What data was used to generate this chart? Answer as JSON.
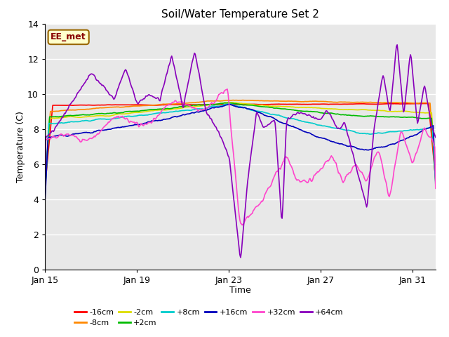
{
  "title": "Soil/Water Temperature Set 2",
  "xlabel": "Time",
  "ylabel": "Temperature (C)",
  "ylim": [
    0,
    14
  ],
  "yticks": [
    0,
    2,
    4,
    6,
    8,
    10,
    12,
    14
  ],
  "xtick_labels": [
    "Jan 15",
    "Jan 19",
    "Jan 23",
    "Jan 27",
    "Jan 31"
  ],
  "xtick_days": [
    0,
    4,
    8,
    12,
    16
  ],
  "total_days": 17,
  "bg_color": "#ffffff",
  "plot_bg_color": "#e8e8e8",
  "grid_color": "#ffffff",
  "annotation_text": "EE_met",
  "annotation_bg": "#ffffcc",
  "annotation_border": "#996600",
  "series": {
    "-16cm": {
      "color": "#ff0000",
      "lw": 1.2
    },
    "-8cm": {
      "color": "#ff8800",
      "lw": 1.2
    },
    "-2cm": {
      "color": "#dddd00",
      "lw": 1.2
    },
    "+2cm": {
      "color": "#00bb00",
      "lw": 1.2
    },
    "+8cm": {
      "color": "#00cccc",
      "lw": 1.2
    },
    "+16cm": {
      "color": "#0000bb",
      "lw": 1.2
    },
    "+32cm": {
      "color": "#ff44cc",
      "lw": 1.2
    },
    "+64cm": {
      "color": "#8800bb",
      "lw": 1.2
    }
  },
  "legend_order": [
    "-16cm",
    "-8cm",
    "-2cm",
    "+2cm",
    "+8cm",
    "+16cm",
    "+32cm",
    "+64cm"
  ]
}
